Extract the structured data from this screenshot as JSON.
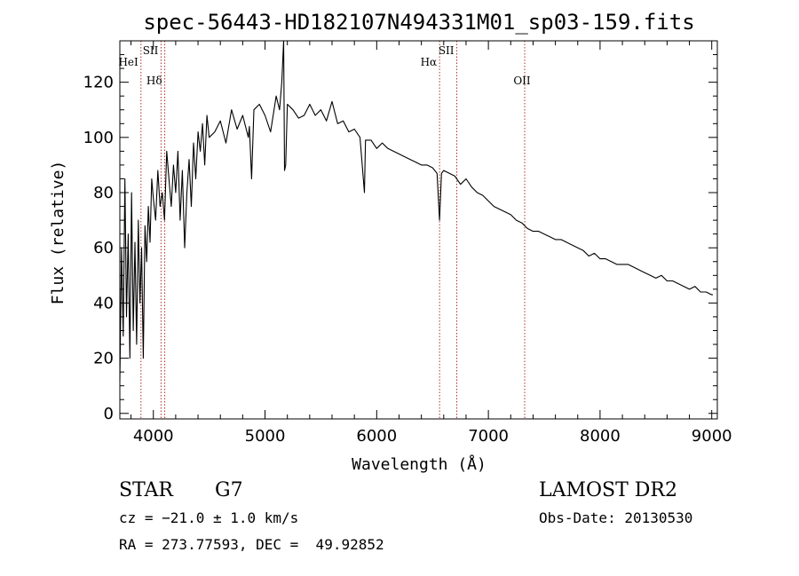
{
  "chart_data": {
    "type": "line",
    "title": "spec-56443-HD182107N494331M01_sp03-159.fits",
    "xlabel": "Wavelength (Å)",
    "ylabel": "Flux (relative)",
    "xlim": [
      3700,
      9050
    ],
    "ylim": [
      -2,
      135
    ],
    "xticks": [
      4000,
      5000,
      6000,
      7000,
      8000,
      9000
    ],
    "yticks": [
      0,
      20,
      40,
      60,
      80,
      100,
      120
    ],
    "grid": false,
    "line_color": "#000000",
    "marker_color": "#b03030",
    "spectral_lines": [
      {
        "label": "HeI",
        "wavelength": 3889
      },
      {
        "label": "SII",
        "wavelength": 4069
      },
      {
        "label": "Hδ",
        "wavelength": 4102
      },
      {
        "label": "Hα",
        "wavelength": 6563
      },
      {
        "label": "SII",
        "wavelength": 6717
      },
      {
        "label": "OII",
        "wavelength": 7325
      }
    ],
    "series": [
      {
        "x": [
          3700,
          3715,
          3730,
          3745,
          3760,
          3775,
          3790,
          3805,
          3820,
          3835,
          3850,
          3865,
          3880,
          3895,
          3910,
          3925,
          3940,
          3955,
          3970,
          3985,
          4000,
          4020,
          4040,
          4060,
          4080,
          4100,
          4120,
          4140,
          4160,
          4180,
          4200,
          4220,
          4240,
          4260,
          4280,
          4300,
          4320,
          4340,
          4360,
          4380,
          4400,
          4420,
          4440,
          4460,
          4480,
          4500,
          4550,
          4600,
          4650,
          4700,
          4750,
          4800,
          4850,
          4860,
          4880,
          4900,
          4950,
          5000,
          5050,
          5100,
          5130,
          5150,
          5167,
          5175,
          5185,
          5200,
          5250,
          5300,
          5350,
          5400,
          5450,
          5500,
          5550,
          5600,
          5650,
          5700,
          5750,
          5800,
          5850,
          5890,
          5900,
          5950,
          6000,
          6050,
          6100,
          6150,
          6200,
          6250,
          6300,
          6350,
          6400,
          6450,
          6500,
          6540,
          6563,
          6580,
          6600,
          6650,
          6700,
          6750,
          6800,
          6850,
          6900,
          6950,
          7000,
          7050,
          7100,
          7150,
          7200,
          7250,
          7300,
          7350,
          7400,
          7450,
          7500,
          7550,
          7600,
          7650,
          7700,
          7750,
          7800,
          7850,
          7900,
          7950,
          8000,
          8050,
          8100,
          8150,
          8200,
          8250,
          8300,
          8350,
          8400,
          8450,
          8500,
          8550,
          8600,
          8650,
          8700,
          8750,
          8800,
          8850,
          8900,
          8950,
          9000,
          9010
        ],
        "y": [
          12,
          60,
          28,
          85,
          35,
          65,
          20,
          80,
          30,
          62,
          25,
          70,
          40,
          60,
          20,
          68,
          55,
          75,
          62,
          85,
          78,
          70,
          88,
          75,
          80,
          70,
          95,
          85,
          75,
          90,
          80,
          95,
          70,
          88,
          60,
          80,
          92,
          75,
          98,
          85,
          102,
          95,
          105,
          90,
          108,
          100,
          102,
          106,
          98,
          110,
          103,
          108,
          100,
          104,
          85,
          110,
          112,
          108,
          102,
          115,
          110,
          120,
          135,
          88,
          90,
          112,
          110,
          107,
          108,
          112,
          108,
          110,
          106,
          113,
          105,
          106,
          102,
          103,
          100,
          80,
          99,
          99,
          96,
          98,
          96,
          95,
          94,
          93,
          92,
          91,
          90,
          90,
          89,
          87,
          70,
          87,
          88,
          87,
          86,
          83,
          85,
          82,
          80,
          79,
          77,
          75,
          74,
          73,
          72,
          70,
          69,
          67,
          66,
          66,
          65,
          64,
          63,
          63,
          62,
          61,
          60,
          59,
          57,
          58,
          56,
          56,
          55,
          54,
          54,
          54,
          53,
          52,
          51,
          50,
          49,
          50,
          48,
          48,
          47,
          46,
          45,
          46,
          44,
          44,
          43,
          43
        ]
      }
    ]
  },
  "info": {
    "class": "STAR",
    "subclass": "G7",
    "cz": "cz = −21.0 ± 1.0 km/s",
    "radec": "RA = 273.77593, DEC =  49.92852",
    "survey": "LAMOST DR2",
    "obsdate": "Obs-Date: 20130530"
  }
}
